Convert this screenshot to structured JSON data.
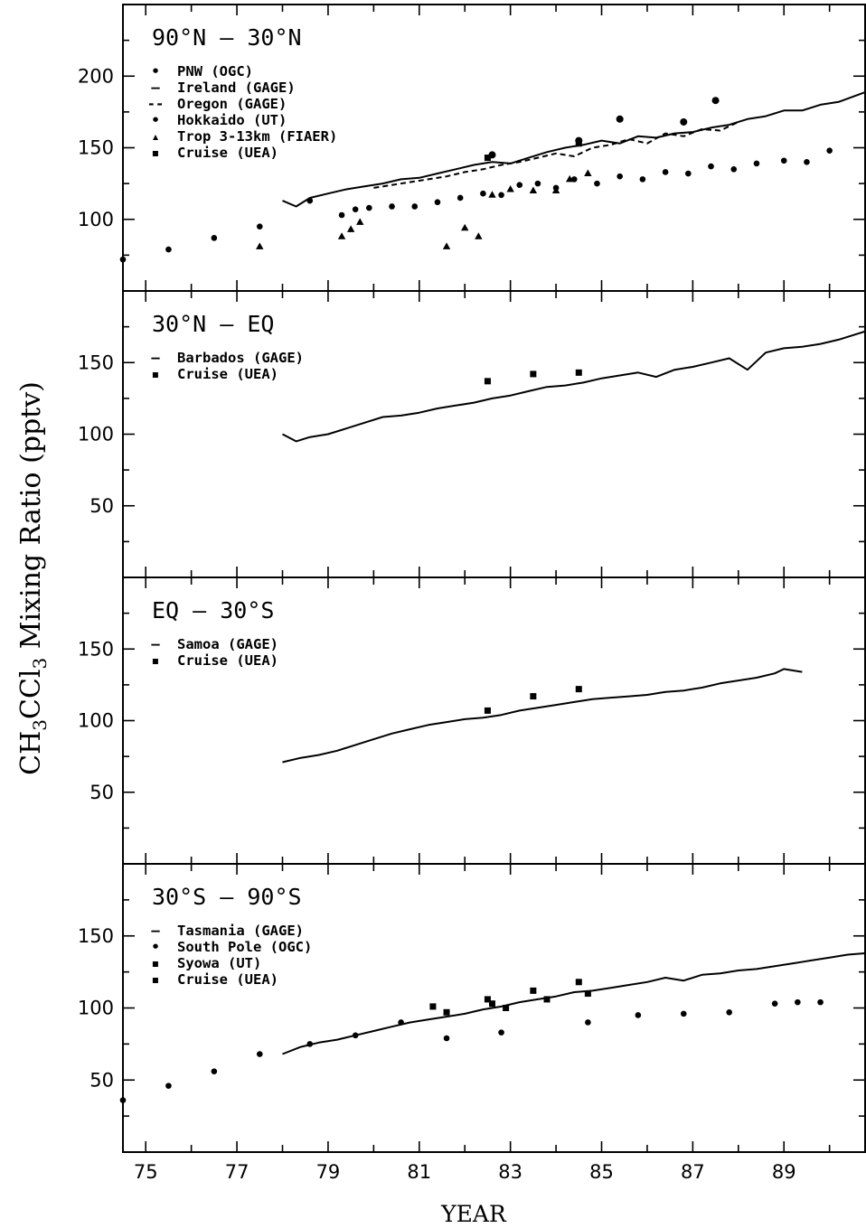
{
  "ylabel": "CH3CCl3 Mixing Ratio (pptv)",
  "xlabel": "YEAR",
  "chart_data": [
    {
      "type": "line",
      "title": "90°N  –  30°N",
      "xlim": [
        74.5,
        90.8
      ],
      "ylim": [
        50,
        250
      ],
      "yticks": [
        100,
        150,
        200
      ],
      "legend": [
        {
          "marker": "•",
          "label": "PNW (OGC)"
        },
        {
          "marker": "–",
          "label": "Ireland (GAGE)"
        },
        {
          "marker": "--",
          "label": "Oregon (GAGE)"
        },
        {
          "marker": "•",
          "label": "Hokkaido (UT)"
        },
        {
          "marker": "▴",
          "label": "Trop 3-13km (FIAER)"
        },
        {
          "marker": "▪",
          "label": "Cruise (UEA)"
        }
      ],
      "series": [
        {
          "name": "PNW (OGC)",
          "kind": "dot",
          "x": [
            74.5,
            75.5,
            76.5,
            77.5,
            78.6,
            79.3,
            79.6,
            79.9,
            80.4,
            80.9,
            81.4,
            81.9,
            82.4,
            82.8,
            83.2,
            83.6,
            84.0,
            84.4,
            84.9,
            85.4,
            85.9,
            86.4,
            86.9,
            87.4,
            87.9,
            88.4,
            89.0,
            89.5,
            90.0
          ],
          "y": [
            72,
            79,
            87,
            95,
            113,
            103,
            107,
            108,
            109,
            109,
            112,
            115,
            118,
            117,
            124,
            125,
            122,
            128,
            125,
            130,
            128,
            133,
            132,
            137,
            135,
            139,
            141,
            140,
            148
          ]
        },
        {
          "name": "Ireland (GAGE)",
          "kind": "line",
          "x": [
            78.0,
            78.3,
            78.6,
            79.0,
            79.4,
            79.8,
            80.2,
            80.6,
            81.0,
            81.4,
            81.8,
            82.2,
            82.6,
            83.0,
            83.4,
            83.8,
            84.2,
            84.6,
            85.0,
            85.4,
            85.8,
            86.2,
            86.6,
            87.0,
            87.4,
            87.8,
            88.2,
            88.6,
            89.0,
            89.4,
            89.8,
            90.2,
            90.8
          ],
          "y": [
            113,
            109,
            115,
            118,
            121,
            123,
            125,
            128,
            129,
            132,
            135,
            138,
            140,
            139,
            143,
            147,
            150,
            152,
            155,
            153,
            158,
            157,
            160,
            161,
            164,
            166,
            170,
            172,
            176,
            176,
            180,
            182,
            189
          ]
        },
        {
          "name": "Oregon (GAGE)",
          "kind": "dash",
          "x": [
            80.0,
            80.4,
            80.8,
            81.2,
            81.6,
            82.0,
            82.4,
            82.8,
            83.2,
            83.6,
            84.0,
            84.4,
            84.8,
            85.2,
            85.6,
            86.0,
            86.4,
            86.8,
            87.2,
            87.6,
            88.0
          ],
          "y": [
            122,
            124,
            126,
            128,
            130,
            133,
            135,
            138,
            140,
            143,
            146,
            144,
            150,
            152,
            156,
            153,
            160,
            158,
            163,
            162,
            168
          ]
        },
        {
          "name": "Hokkaido (UT)",
          "kind": "bigdot",
          "x": [
            82.6,
            84.5,
            85.4,
            86.8,
            87.5
          ],
          "y": [
            145,
            155,
            170,
            168,
            183
          ]
        },
        {
          "name": "Trop 3-13km (FIAER)",
          "kind": "triangle",
          "x": [
            77.5,
            79.3,
            79.5,
            79.7,
            81.6,
            82.0,
            82.3,
            82.6,
            83.0,
            83.5,
            84.0,
            84.3,
            84.7
          ],
          "y": [
            81,
            88,
            93,
            98,
            81,
            94,
            88,
            117,
            121,
            120,
            120,
            128,
            132
          ]
        },
        {
          "name": "Cruise (UEA)",
          "kind": "square",
          "x": [
            82.5,
            84.5
          ],
          "y": [
            143,
            153
          ]
        }
      ]
    },
    {
      "type": "line",
      "title": "30°N  –  EQ",
      "xlim": [
        74.5,
        90.8
      ],
      "ylim": [
        0,
        200
      ],
      "yticks": [
        50,
        100,
        150
      ],
      "legend": [
        {
          "marker": "–",
          "label": "Barbados (GAGE)"
        },
        {
          "marker": "▪",
          "label": "Cruise (UEA)"
        }
      ],
      "series": [
        {
          "name": "Barbados (GAGE)",
          "kind": "line",
          "x": [
            78.0,
            78.3,
            78.6,
            79.0,
            79.4,
            79.8,
            80.2,
            80.6,
            81.0,
            81.4,
            81.8,
            82.2,
            82.6,
            83.0,
            83.4,
            83.8,
            84.2,
            84.6,
            85.0,
            85.4,
            85.8,
            86.2,
            86.6,
            87.0,
            87.4,
            87.8,
            88.2,
            88.6,
            89.0,
            89.4,
            89.8,
            90.2,
            90.8
          ],
          "y": [
            100,
            95,
            98,
            100,
            104,
            108,
            112,
            113,
            115,
            118,
            120,
            122,
            125,
            127,
            130,
            133,
            134,
            136,
            139,
            141,
            143,
            140,
            145,
            147,
            150,
            153,
            145,
            157,
            160,
            161,
            163,
            166,
            172
          ]
        },
        {
          "name": "Cruise (UEA)",
          "kind": "square",
          "x": [
            82.5,
            83.5,
            84.5
          ],
          "y": [
            137,
            142,
            143
          ]
        }
      ]
    },
    {
      "type": "line",
      "title": "EQ  –  30°S",
      "xlim": [
        74.5,
        90.8
      ],
      "ylim": [
        0,
        200
      ],
      "yticks": [
        50,
        100,
        150
      ],
      "legend": [
        {
          "marker": "–",
          "label": "Samoa (GAGE)"
        },
        {
          "marker": "▪",
          "label": "Cruise (UEA)"
        }
      ],
      "series": [
        {
          "name": "Samoa (GAGE)",
          "kind": "line",
          "x": [
            78.0,
            78.4,
            78.8,
            79.2,
            79.6,
            80.0,
            80.4,
            80.8,
            81.2,
            81.6,
            82.0,
            82.4,
            82.8,
            83.2,
            83.6,
            84.0,
            84.4,
            84.8,
            85.2,
            85.6,
            86.0,
            86.4,
            86.8,
            87.2,
            87.6,
            88.0,
            88.4,
            88.8,
            89.0,
            89.4
          ],
          "y": [
            71,
            74,
            76,
            79,
            83,
            87,
            91,
            94,
            97,
            99,
            101,
            102,
            104,
            107,
            109,
            111,
            113,
            115,
            116,
            117,
            118,
            120,
            121,
            123,
            126,
            128,
            130,
            133,
            136,
            134
          ]
        },
        {
          "name": "Cruise (UEA)",
          "kind": "square",
          "x": [
            82.5,
            83.5,
            84.5
          ],
          "y": [
            107,
            117,
            122
          ]
        }
      ]
    },
    {
      "type": "line",
      "title": "30°S  –  90°S",
      "xlim": [
        74.5,
        90.8
      ],
      "ylim": [
        0,
        200
      ],
      "yticks": [
        50,
        100,
        150
      ],
      "legend": [
        {
          "marker": "–",
          "label": "Tasmania (GAGE)"
        },
        {
          "marker": "•",
          "label": "South Pole (OGC)"
        },
        {
          "marker": "▪",
          "label": "Syowa (UT)"
        },
        {
          "marker": "▪",
          "label": "Cruise (UEA)"
        }
      ],
      "series": [
        {
          "name": "Tasmania (GAGE)",
          "kind": "line",
          "x": [
            78.0,
            78.4,
            78.8,
            79.2,
            79.6,
            80.0,
            80.4,
            80.8,
            81.2,
            81.6,
            82.0,
            82.4,
            82.8,
            83.2,
            83.6,
            84.0,
            84.4,
            84.8,
            85.2,
            85.6,
            86.0,
            86.4,
            86.8,
            87.2,
            87.6,
            88.0,
            88.4,
            88.8,
            89.2,
            89.6,
            90.0,
            90.4,
            90.8
          ],
          "y": [
            68,
            73,
            76,
            78,
            81,
            84,
            87,
            90,
            92,
            94,
            96,
            99,
            101,
            104,
            106,
            108,
            111,
            112,
            114,
            116,
            118,
            121,
            119,
            123,
            124,
            126,
            127,
            129,
            131,
            133,
            135,
            137,
            138
          ]
        },
        {
          "name": "South Pole (OGC)",
          "kind": "dot",
          "x": [
            74.5,
            75.5,
            76.5,
            77.5,
            78.6,
            79.6,
            80.6,
            81.6,
            82.8,
            84.7,
            85.8,
            86.8,
            87.8,
            88.8,
            89.3,
            89.8
          ],
          "y": [
            36,
            46,
            56,
            68,
            75,
            81,
            90,
            79,
            83,
            90,
            95,
            96,
            97,
            103,
            104,
            104
          ]
        },
        {
          "name": "Syowa (UT)",
          "kind": "square",
          "x": [
            81.3,
            81.6,
            82.6,
            82.9,
            83.8,
            84.7
          ],
          "y": [
            101,
            97,
            103,
            100,
            106,
            110
          ]
        },
        {
          "name": "Cruise (UEA)",
          "kind": "square",
          "x": [
            82.5,
            83.5,
            84.5
          ],
          "y": [
            106,
            112,
            118
          ]
        }
      ]
    }
  ],
  "xticklabels": [
    "75",
    "77",
    "79",
    "81",
    "83",
    "85",
    "87",
    "89"
  ]
}
